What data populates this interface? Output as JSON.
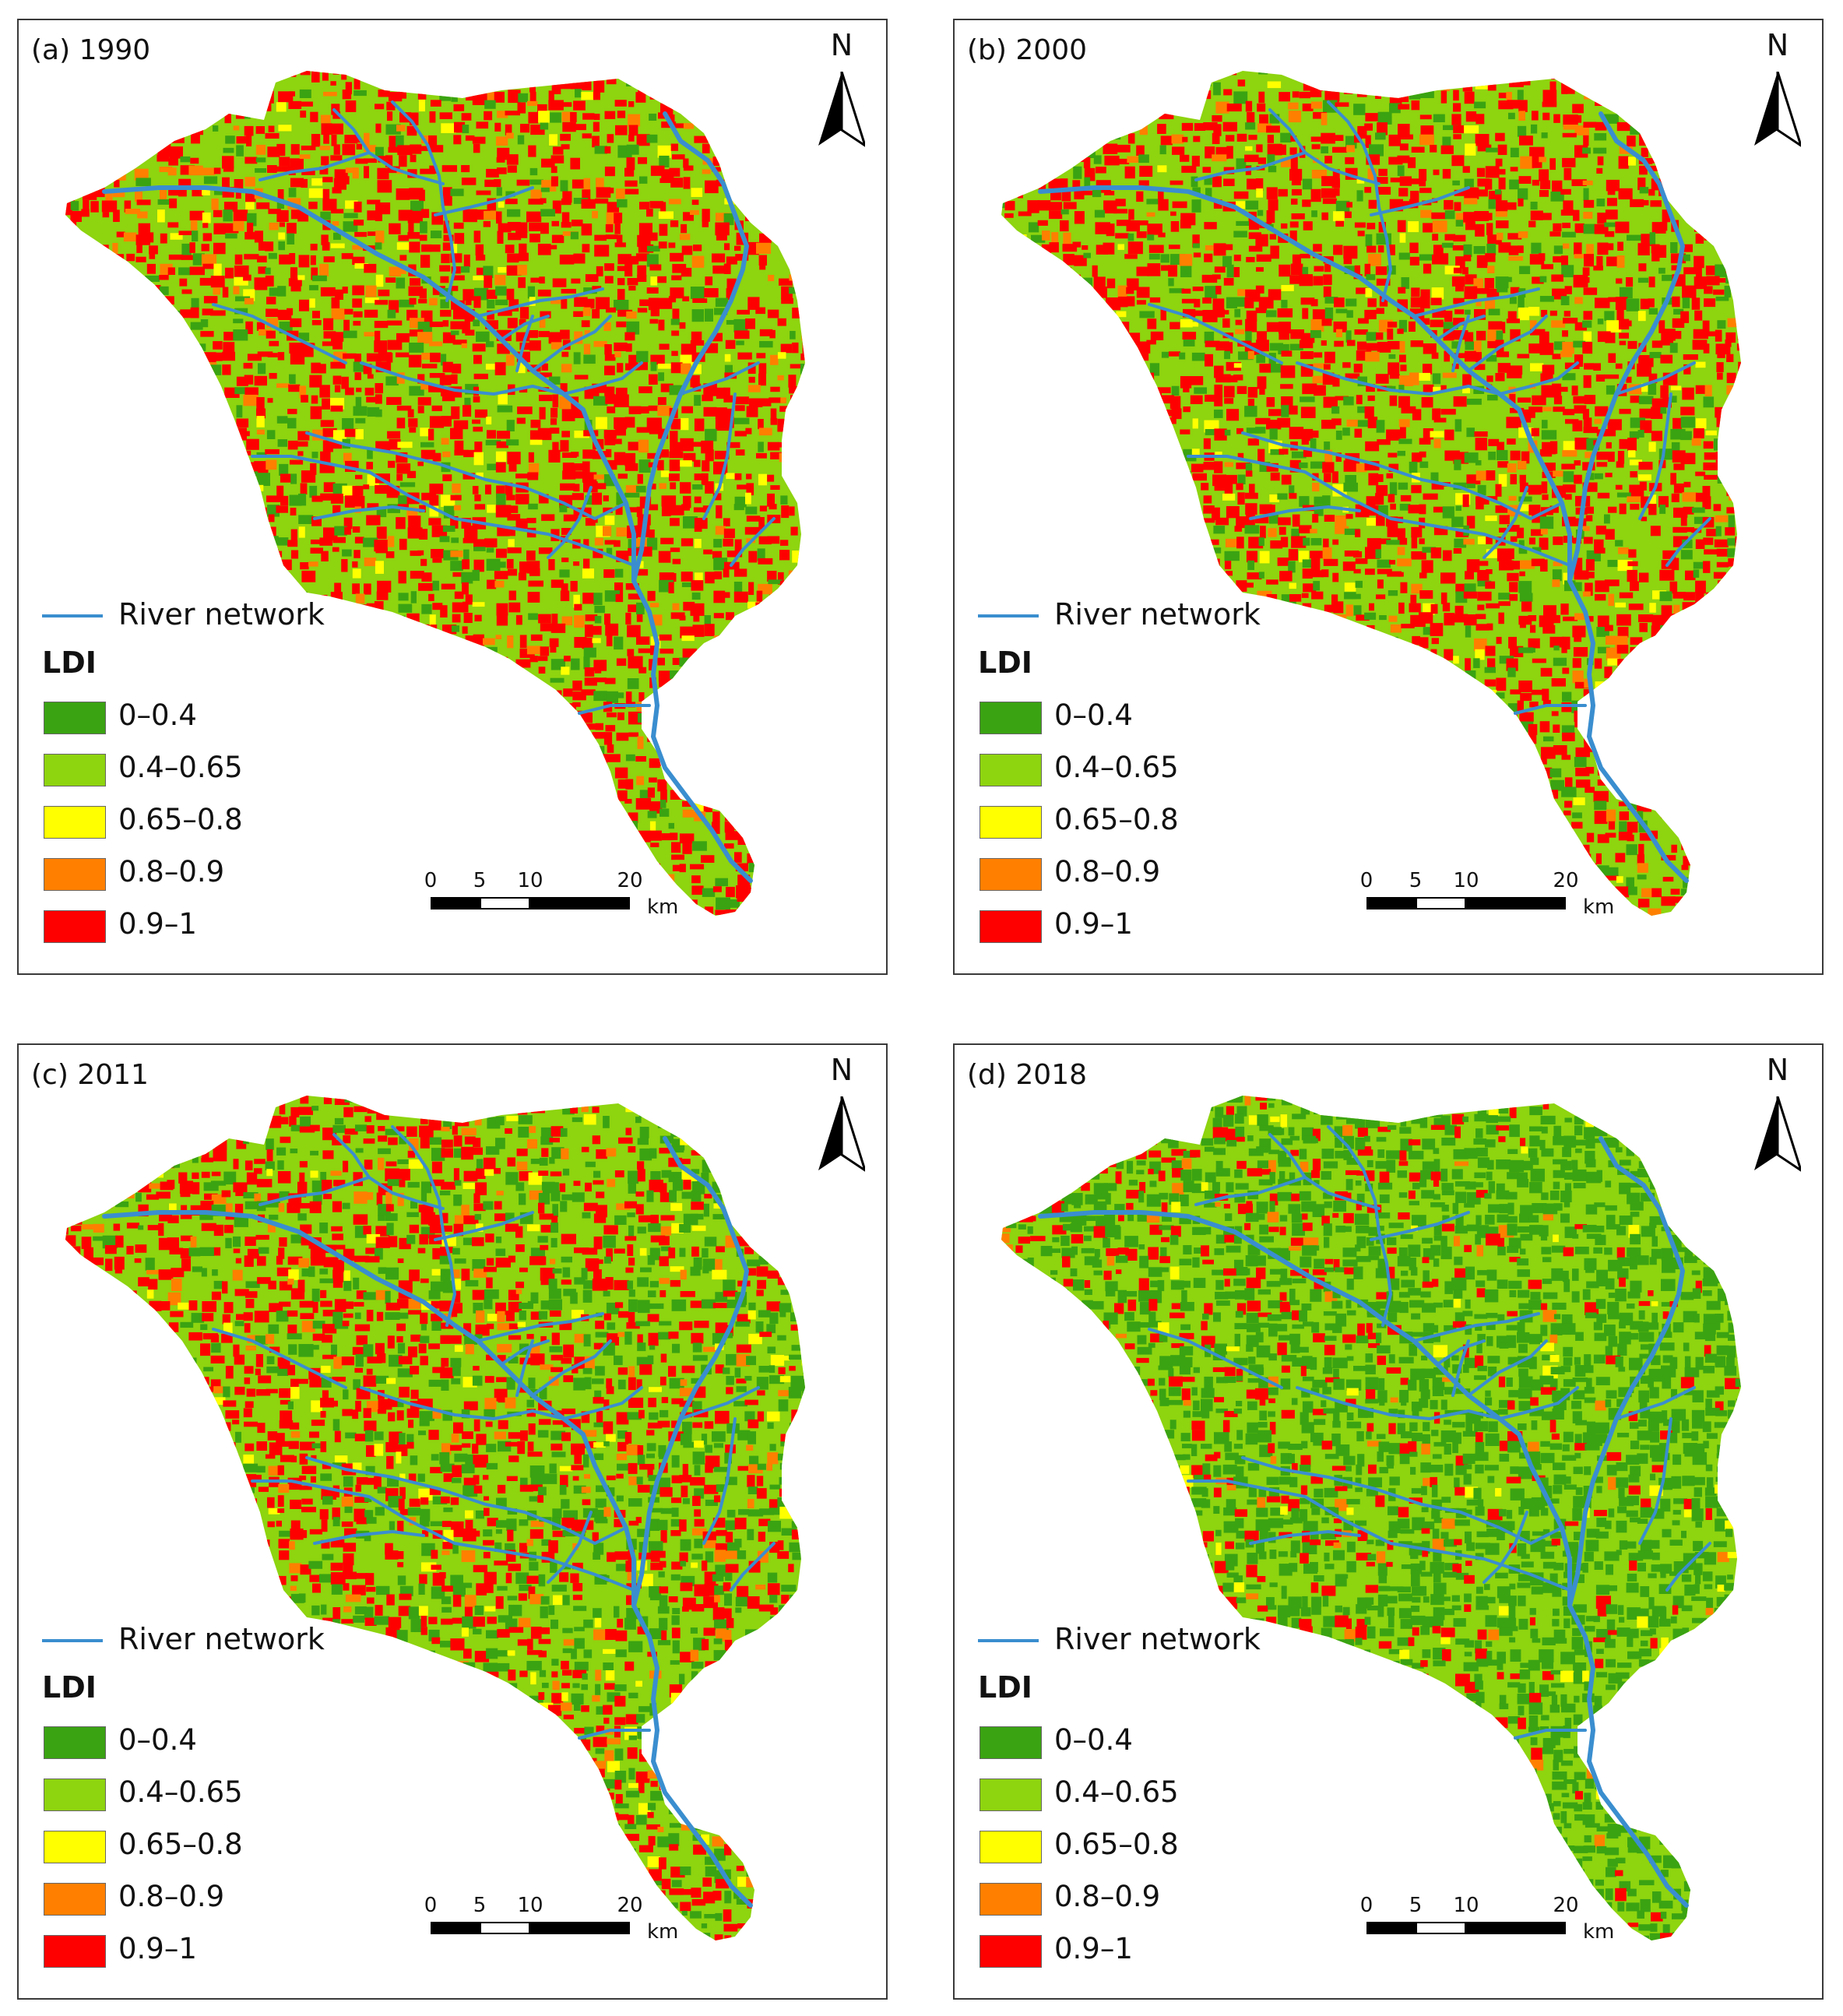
{
  "panels": [
    {
      "id": "a",
      "title": "(a) 1990",
      "red": 0.46,
      "orange": 0.05,
      "yellow": 0.03,
      "light": 0.36,
      "dark": 0.1
    },
    {
      "id": "b",
      "title": "(b) 2000",
      "red": 0.44,
      "orange": 0.05,
      "yellow": 0.03,
      "light": 0.34,
      "dark": 0.14
    },
    {
      "id": "c",
      "title": "(c) 2011",
      "red": 0.36,
      "orange": 0.04,
      "yellow": 0.03,
      "light": 0.34,
      "dark": 0.23
    },
    {
      "id": "d",
      "title": "(d) 2018",
      "red": 0.14,
      "orange": 0.02,
      "yellow": 0.02,
      "light": 0.3,
      "dark": 0.52
    }
  ],
  "north_label": "N",
  "legend": {
    "river_label": "River network",
    "river_color": "#3a8ecf",
    "title": "LDI",
    "classes": [
      {
        "label": "0–0.4",
        "color": "#3aa312"
      },
      {
        "label": "0.4–0.65",
        "color": "#8ed40f"
      },
      {
        "label": "0.65–0.8",
        "color": "#ffff00"
      },
      {
        "label": "0.8–0.9",
        "color": "#ff8000"
      },
      {
        "label": "0.9–1",
        "color": "#ff0000"
      }
    ]
  },
  "scalebar": {
    "ticks": [
      "0",
      "5",
      "10",
      "20"
    ],
    "unit": "km"
  }
}
